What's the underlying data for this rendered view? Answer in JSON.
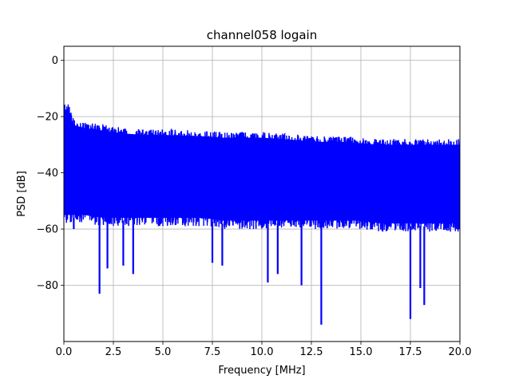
{
  "chart_data": {
    "type": "line",
    "title": "channel058 logain",
    "xlabel": "Frequency [MHz]",
    "ylabel": "PSD [dB]",
    "xlim": [
      0,
      20
    ],
    "ylim": [
      -100,
      5
    ],
    "xticks": [
      0,
      2.5,
      5,
      7.5,
      10,
      12.5,
      15,
      17.5,
      20
    ],
    "xtick_labels": [
      "0.0",
      "2.5",
      "5.0",
      "7.5",
      "10.0",
      "12.5",
      "15.0",
      "17.5",
      "20.0"
    ],
    "yticks": [
      0,
      -20,
      -40,
      -60,
      -80
    ],
    "ytick_labels": [
      "0",
      "−20",
      "−40",
      "−60",
      "−80"
    ],
    "grid": true,
    "line_color": "#0000ff",
    "series": [
      {
        "upper_envelope": {
          "x": [
            0,
            0.2,
            0.5,
            1,
            2,
            3,
            4,
            5,
            6,
            7,
            8,
            9,
            10,
            11,
            12,
            13,
            14,
            15,
            16,
            17,
            18,
            19,
            20
          ],
          "y": [
            -16,
            -15,
            -21,
            -22,
            -23,
            -24,
            -24.5,
            -24.5,
            -24.8,
            -25,
            -25.5,
            -25.5,
            -25.5,
            -26,
            -26.5,
            -27,
            -27,
            -27.5,
            -28,
            -28,
            -28,
            -28,
            -28
          ]
        },
        "lower_envelope": {
          "x": [
            0,
            1,
            2,
            3,
            4,
            5,
            6,
            7,
            8,
            9,
            10,
            11,
            12,
            13,
            14,
            15,
            16,
            17,
            18,
            19,
            20
          ],
          "y": [
            -58,
            -58,
            -59,
            -59,
            -59,
            -59,
            -59,
            -59,
            -60,
            -60,
            -60,
            -60,
            -60,
            -60,
            -60,
            -60,
            -61,
            -61,
            -61,
            -61,
            -61
          ]
        },
        "dips": [
          {
            "x": 1.8,
            "y": -83
          },
          {
            "x": 13.0,
            "y": -94
          },
          {
            "x": 17.5,
            "y": -92
          },
          {
            "x": 18.2,
            "y": -87
          },
          {
            "x": 18.0,
            "y": -81
          },
          {
            "x": 12.0,
            "y": -80
          },
          {
            "x": 10.3,
            "y": -79
          },
          {
            "x": 3.5,
            "y": -76
          },
          {
            "x": 2.2,
            "y": -74
          },
          {
            "x": 3.0,
            "y": -73
          },
          {
            "x": 10.8,
            "y": -76
          },
          {
            "x": 7.5,
            "y": -72
          },
          {
            "x": 8.0,
            "y": -73
          },
          {
            "x": 0.5,
            "y": -60
          }
        ]
      }
    ]
  }
}
